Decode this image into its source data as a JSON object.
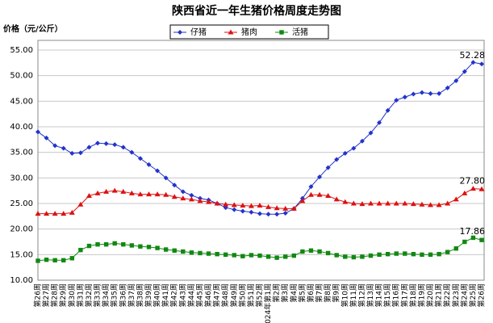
{
  "chart_data": {
    "type": "line",
    "title": "陕西省近一年生猪价格周度走势图",
    "y_label": "价格（元/公斤）",
    "categories": [
      "第26周",
      "第27周",
      "第28周",
      "第29周",
      "第30周",
      "第31周",
      "第32周",
      "第33周",
      "第34周",
      "第35周",
      "第36周",
      "第37周",
      "第38周",
      "第39周",
      "第40周",
      "第41周",
      "第42周",
      "第43周",
      "第44周",
      "第45周",
      "第46周",
      "第47周",
      "第48周",
      "第49周",
      "第50周",
      "第51周",
      "第52周",
      "2024年第1周",
      "第2周",
      "第3周",
      "第4周",
      "第5周",
      "第6周",
      "第7周",
      "第8周",
      "第9周",
      "第10周",
      "第11周",
      "第12周",
      "第13周",
      "第14周",
      "第15周",
      "第16周",
      "第17周",
      "第18周",
      "第19周",
      "第20周",
      "第21周",
      "第22周",
      "第23周",
      "第24周",
      "第25周",
      "第26周"
    ],
    "series": [
      {
        "name": "仔猪",
        "color": "#2233cc",
        "marker": "diamond",
        "values": [
          39.0,
          37.8,
          36.3,
          35.8,
          34.8,
          34.9,
          36.0,
          36.8,
          36.7,
          36.5,
          36.0,
          35.0,
          33.8,
          32.6,
          31.4,
          30.0,
          28.6,
          27.3,
          26.6,
          26.0,
          25.7,
          25.0,
          24.2,
          23.8,
          23.5,
          23.3,
          23.0,
          22.9,
          22.9,
          23.1,
          24.0,
          26.0,
          28.3,
          30.2,
          32.0,
          33.6,
          34.8,
          35.8,
          37.2,
          38.8,
          40.8,
          43.2,
          45.2,
          45.8,
          46.4,
          46.7,
          46.5,
          46.5,
          47.6,
          49.0,
          50.8,
          52.6,
          52.28
        ],
        "value_labels": [
          null,
          null,
          null,
          null,
          null,
          null,
          null,
          null,
          null,
          null,
          null,
          null,
          null,
          null,
          null,
          null,
          null,
          null,
          null,
          null,
          null,
          null,
          null,
          null,
          null,
          null,
          null,
          null,
          null,
          null,
          null,
          null,
          null,
          null,
          null,
          null,
          null,
          null,
          null,
          null,
          null,
          null,
          null,
          null,
          null,
          null,
          null,
          null,
          null,
          null,
          null,
          null,
          "52.28"
        ]
      },
      {
        "name": "猪肉",
        "color": "#dd1111",
        "marker": "triangle",
        "values": [
          23.0,
          23.0,
          23.0,
          23.0,
          23.2,
          24.8,
          26.5,
          27.0,
          27.3,
          27.5,
          27.3,
          27.0,
          26.8,
          26.8,
          26.8,
          26.7,
          26.3,
          26.0,
          25.8,
          25.5,
          25.3,
          25.0,
          24.8,
          24.7,
          24.6,
          24.5,
          24.6,
          24.3,
          24.1,
          24.0,
          24.0,
          25.5,
          26.7,
          26.7,
          26.5,
          25.8,
          25.3,
          25.0,
          24.9,
          25.0,
          25.0,
          25.0,
          25.0,
          25.0,
          24.9,
          24.8,
          24.7,
          24.7,
          25.0,
          25.8,
          27.0,
          27.9,
          27.8
        ],
        "value_labels": [
          null,
          null,
          null,
          null,
          null,
          null,
          null,
          null,
          null,
          null,
          null,
          null,
          null,
          null,
          null,
          null,
          null,
          null,
          null,
          null,
          null,
          null,
          null,
          null,
          null,
          null,
          null,
          null,
          null,
          null,
          null,
          null,
          null,
          null,
          null,
          null,
          null,
          null,
          null,
          null,
          null,
          null,
          null,
          null,
          null,
          null,
          null,
          null,
          null,
          null,
          null,
          null,
          "27.80"
        ]
      },
      {
        "name": "活猪",
        "color": "#118811",
        "marker": "square",
        "values": [
          13.8,
          14.0,
          13.9,
          13.9,
          14.3,
          15.9,
          16.7,
          17.0,
          17.0,
          17.2,
          17.0,
          16.8,
          16.6,
          16.5,
          16.3,
          16.0,
          15.8,
          15.6,
          15.4,
          15.3,
          15.2,
          15.1,
          15.0,
          14.9,
          14.7,
          14.9,
          14.8,
          14.6,
          14.4,
          14.6,
          14.8,
          15.6,
          15.8,
          15.6,
          15.3,
          14.9,
          14.6,
          14.5,
          14.6,
          14.8,
          15.0,
          15.1,
          15.2,
          15.2,
          15.1,
          15.0,
          15.0,
          15.1,
          15.5,
          16.2,
          17.5,
          18.3,
          17.86
        ],
        "value_labels": [
          null,
          null,
          null,
          null,
          null,
          null,
          null,
          null,
          null,
          null,
          null,
          null,
          null,
          null,
          null,
          null,
          null,
          null,
          null,
          null,
          null,
          null,
          null,
          null,
          null,
          null,
          null,
          null,
          null,
          null,
          null,
          null,
          null,
          null,
          null,
          null,
          null,
          null,
          null,
          null,
          null,
          null,
          null,
          null,
          null,
          null,
          null,
          null,
          null,
          null,
          null,
          null,
          "17.86"
        ]
      }
    ],
    "ylim": [
      10,
      55
    ],
    "yticks": [
      {
        "value": 10,
        "label": "10.00"
      },
      {
        "value": 15,
        "label": "15.00"
      },
      {
        "value": 20,
        "label": "20.00"
      },
      {
        "value": 25,
        "label": "25.00"
      },
      {
        "value": 30,
        "label": "30.00"
      },
      {
        "value": 35,
        "label": "35.00"
      },
      {
        "value": 40,
        "label": "40.00"
      },
      {
        "value": 45,
        "label": "45.00"
      },
      {
        "value": 50,
        "label": "50.00"
      },
      {
        "value": 55,
        "label": "55.00"
      }
    ],
    "grid": true,
    "legend": "top"
  }
}
